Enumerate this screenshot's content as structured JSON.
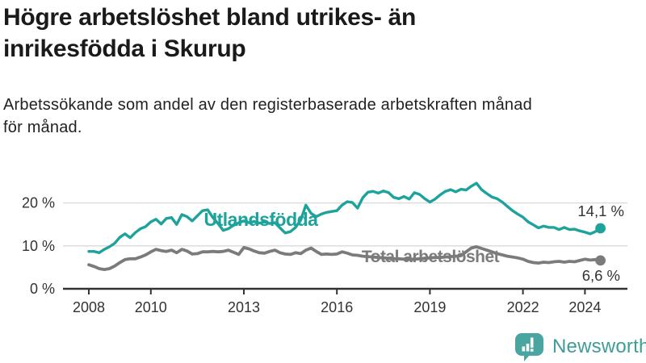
{
  "header": {
    "title": "Högre arbetslöshet bland utrikes- än\ninrikesfödda i Skurup",
    "subtitle": "Arbetssökande som andel av den registerbaserade arbetskraften månad\nför månad."
  },
  "footer": {
    "brand": "Newsworthy",
    "logo_icon": "bar-chart-speech-bubble-icon"
  },
  "colors": {
    "foreign_born_line": "#1ea29c",
    "total_line": "#7b7b7b",
    "axis": "#333333",
    "gridline": "#d9d9d9",
    "value_label": "#333333",
    "title_text": "#1a1a1a",
    "brand_teal": "#3e9d99"
  },
  "chart_data": {
    "type": "line",
    "title": "Högre arbetslöshet bland utrikes- än inrikesfödda i Skurup",
    "subtitle": "Arbetssökande som andel av den registerbaserade arbetskraften månad för månad.",
    "unit": "%",
    "x_start": 2008,
    "x_step_years": 0.1666667,
    "x_ticks": [
      2008,
      2010,
      2013,
      2016,
      2019,
      2022,
      2024
    ],
    "y_ticks": [
      {
        "value": 0,
        "label": "0 %"
      },
      {
        "value": 10,
        "label": "10 %"
      },
      {
        "value": 20,
        "label": "20 %"
      }
    ],
    "y_gridlines": [
      10,
      20
    ],
    "ylim": [
      0,
      26
    ],
    "xlim": [
      2008,
      2024.6
    ],
    "grid": true,
    "legend_position": "inline-labels",
    "series": [
      {
        "name": "Utlandsfödda",
        "color": "#1ea29c",
        "end_label": "14,1 %",
        "end_value": 14.1,
        "values": [
          8.7,
          8.7,
          8.4,
          9.2,
          9.8,
          10.6,
          12.0,
          12.8,
          11.9,
          13.1,
          14.0,
          14.5,
          15.6,
          16.2,
          15.1,
          16.4,
          16.6,
          15.0,
          17.3,
          16.8,
          15.8,
          17.0,
          18.2,
          18.4,
          16.6,
          15.2,
          13.6,
          14.0,
          14.8,
          15.4,
          15.8,
          15.4,
          15.7,
          15.3,
          15.6,
          15.2,
          15.4,
          14.2,
          13.0,
          13.3,
          14.3,
          16.0,
          19.5,
          17.6,
          16.8,
          17.4,
          17.8,
          18.0,
          18.2,
          19.5,
          20.3,
          20.1,
          18.8,
          21.2,
          22.5,
          22.7,
          22.3,
          22.8,
          22.4,
          21.3,
          21.0,
          21.5,
          20.9,
          22.4,
          22.0,
          21.0,
          20.2,
          20.9,
          21.9,
          22.7,
          23.1,
          22.6,
          23.2,
          23.0,
          23.9,
          24.6,
          23.1,
          22.2,
          21.4,
          21.0,
          20.2,
          19.2,
          18.2,
          17.4,
          16.7,
          15.6,
          14.9,
          14.2,
          14.6,
          14.3,
          14.3,
          13.8,
          14.3,
          13.8,
          13.9,
          13.5,
          13.2,
          12.8,
          13.3,
          14.1
        ]
      },
      {
        "name": "Total arbetslöshet",
        "color": "#7b7b7b",
        "end_label": "6,6 %",
        "end_value": 6.6,
        "values": [
          5.6,
          5.2,
          4.7,
          4.5,
          4.7,
          5.3,
          6.1,
          6.8,
          7.0,
          7.0,
          7.4,
          7.9,
          8.6,
          9.2,
          8.9,
          8.7,
          9.0,
          8.4,
          9.2,
          8.8,
          8.1,
          8.2,
          8.6,
          8.6,
          8.7,
          8.6,
          8.7,
          9.0,
          8.5,
          8.0,
          9.6,
          9.3,
          8.8,
          8.4,
          8.3,
          8.7,
          9.0,
          8.4,
          8.1,
          8.0,
          8.4,
          8.2,
          9.0,
          9.5,
          8.7,
          8.0,
          8.1,
          8.0,
          8.1,
          8.6,
          8.3,
          7.9,
          7.8,
          7.6,
          7.5,
          7.4,
          7.3,
          7.2,
          7.1,
          7.0,
          7.0,
          6.9,
          6.9,
          6.9,
          7.0,
          7.1,
          7.2,
          7.3,
          7.3,
          7.4,
          7.5,
          7.6,
          7.7,
          8.6,
          9.5,
          9.8,
          9.4,
          9.0,
          8.6,
          8.2,
          7.9,
          7.6,
          7.4,
          7.2,
          6.9,
          6.4,
          6.1,
          6.0,
          6.2,
          6.1,
          6.3,
          6.4,
          6.2,
          6.4,
          6.3,
          6.6,
          6.9,
          6.7,
          6.8,
          6.6
        ]
      }
    ]
  }
}
